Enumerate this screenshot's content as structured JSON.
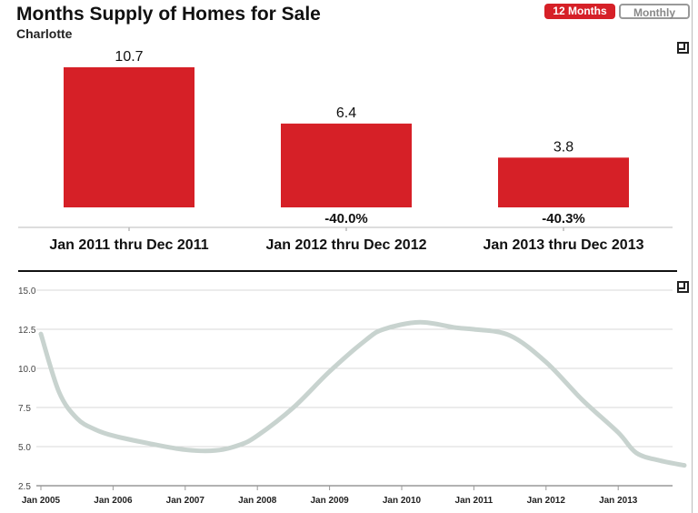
{
  "header": {
    "title": "Months Supply of Homes for Sale",
    "subtitle": "Charlotte",
    "toggle_12": "12 Months",
    "toggle_monthly": "Monthly"
  },
  "chart_data": [
    {
      "type": "bar",
      "categories": [
        "Jan 2011 thru Dec 2011",
        "Jan 2012 thru Dec 2012",
        "Jan 2013 thru Dec 2013"
      ],
      "values": [
        10.7,
        6.4,
        3.8
      ],
      "data_labels": [
        "10.7",
        "6.4",
        "3.8"
      ],
      "change_labels": [
        "",
        "-40.0%",
        "-40.3%"
      ],
      "color": "#d62027"
    },
    {
      "type": "line",
      "color": "#c8d3cf",
      "ylim": [
        2.5,
        15.0
      ],
      "yticks": [
        "2.5",
        "5.0",
        "7.5",
        "10.0",
        "12.5",
        "15.0"
      ],
      "xticks": [
        "Jan 2005",
        "Jan 2006",
        "Jan 2007",
        "Jan 2008",
        "Jan 2009",
        "Jan 2010",
        "Jan 2011",
        "Jan 2012",
        "Jan 2013"
      ],
      "grid": true,
      "x": [
        "2005-01",
        "2005-04",
        "2005-07",
        "2005-10",
        "2006-01",
        "2006-07",
        "2007-01",
        "2007-06",
        "2007-10",
        "2008-01",
        "2008-07",
        "2009-01",
        "2009-07",
        "2009-10",
        "2010-04",
        "2010-10",
        "2011-01",
        "2011-07",
        "2012-01",
        "2012-07",
        "2013-01",
        "2013-04",
        "2013-08",
        "2013-12"
      ],
      "y": [
        12.2,
        8.5,
        6.8,
        6.1,
        5.7,
        5.2,
        4.8,
        4.75,
        5.1,
        5.7,
        7.5,
        9.8,
        11.8,
        12.5,
        12.95,
        12.6,
        12.5,
        12.1,
        10.4,
        8.0,
        5.9,
        4.6,
        4.1,
        3.8
      ]
    }
  ]
}
